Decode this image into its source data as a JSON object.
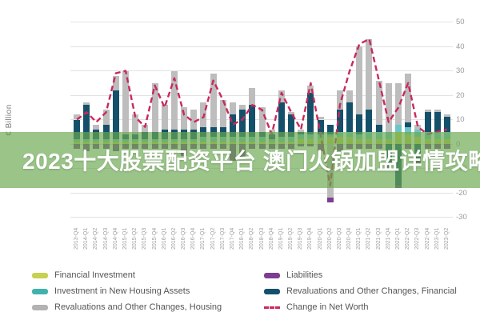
{
  "overlay": {
    "text": "2023十大股票配资平台 澳门火锅加盟详情攻略",
    "background": "#6aa84f",
    "opacity": 0.68,
    "text_color": "#ffffff"
  },
  "chart_data": {
    "type": "bar",
    "stacked": true,
    "title": "",
    "ylabel": "€ Billion",
    "xlabel": "",
    "ylim": [
      -30,
      50
    ],
    "yticks": [
      50,
      40,
      30,
      20,
      10,
      0,
      -10,
      -20,
      -30
    ],
    "grid": true,
    "legend_position": "bottom",
    "categories": [
      "2013-Q4",
      "2014-Q1",
      "2014-Q2",
      "2014-Q3",
      "2014-Q4",
      "2015-Q1",
      "2015-Q2",
      "2015-Q3",
      "2015-Q4",
      "2016-Q1",
      "2016-Q2",
      "2016-Q3",
      "2016-Q4",
      "2017-Q1",
      "2017-Q2",
      "2017-Q3",
      "2017-Q4",
      "2018-Q1",
      "2018-Q2",
      "2018-Q3",
      "2018-Q4",
      "2019-Q1",
      "2019-Q2",
      "2019-Q3",
      "2019-Q4",
      "2020-Q1",
      "2020-Q2",
      "2020-Q3",
      "2020-Q4",
      "2021-Q1",
      "2021-Q2",
      "2021-Q3",
      "2021-Q4",
      "2022-Q1",
      "2022-Q2",
      "2022-Q3",
      "2022-Q4",
      "2023-Q1",
      "2023-Q2"
    ],
    "series": [
      {
        "name": "Financial Investment",
        "color": "#c6d14f",
        "values": [
          1,
          1,
          1,
          1,
          1,
          1,
          1,
          1,
          1,
          1,
          1,
          1,
          1,
          1,
          1,
          1,
          1,
          1,
          1,
          1,
          1,
          1,
          1,
          2,
          2,
          2,
          3,
          3,
          3,
          2,
          2,
          2,
          2,
          5,
          4,
          3,
          2,
          2,
          2
        ]
      },
      {
        "name": "Investment in New Housing Assets",
        "color": "#6cc5c8",
        "values": [
          1,
          1,
          1,
          1,
          1,
          1,
          1,
          1,
          1,
          1,
          1,
          1,
          1,
          2,
          2,
          2,
          2,
          2,
          2,
          2,
          1,
          2,
          2,
          2,
          2,
          2,
          1,
          2,
          2,
          2,
          3,
          3,
          3,
          3,
          3,
          3,
          3,
          3,
          3
        ]
      },
      {
        "name": "Revaluations and Other Changes, Financial",
        "color": "#15506b",
        "values": [
          8,
          14,
          4,
          6,
          20,
          2,
          2,
          3,
          3,
          4,
          4,
          4,
          4,
          4,
          4,
          4,
          9,
          11,
          13,
          2,
          2,
          14,
          9,
          1,
          17,
          6,
          4,
          9,
          12,
          8,
          9,
          3,
          -8,
          -17,
          2,
          -6,
          8,
          8,
          6
        ]
      },
      {
        "name": "Revaluations and Other Changes, Housing",
        "color": "#bdbdbd",
        "values": [
          2,
          1,
          2,
          6,
          6,
          26,
          8,
          3,
          20,
          10,
          24,
          9,
          8,
          10,
          22,
          11,
          5,
          2,
          7,
          10,
          2,
          5,
          1,
          1,
          3,
          1,
          -22,
          8,
          5,
          28,
          29,
          18,
          20,
          17,
          20,
          2,
          1,
          1,
          1
        ]
      },
      {
        "name": "Liabilities",
        "color": "#7d3e91",
        "values": [
          -2,
          -3,
          -2,
          -2,
          -3,
          -2,
          -2,
          -2,
          -2,
          -2,
          -2,
          -5,
          -2,
          -2,
          -2,
          -2,
          -7,
          -6,
          -2,
          -2,
          -2,
          -2,
          -2,
          -1,
          -1,
          -3,
          -2,
          -3,
          -2,
          -2,
          -2,
          -2,
          -2,
          -1,
          -2,
          -2,
          -2,
          -2,
          -2
        ]
      }
    ],
    "line_series": {
      "name": "Change in Net Worth",
      "color": "#c9295a",
      "dashed": true,
      "values": [
        10,
        13,
        9,
        13,
        29,
        30,
        11,
        7,
        24,
        15,
        27,
        12,
        9,
        11,
        26,
        18,
        8,
        10,
        16,
        14,
        4,
        21,
        13,
        6,
        25,
        4,
        -17,
        16,
        30,
        41,
        43,
        26,
        9,
        15,
        25,
        7,
        4,
        5,
        6
      ]
    }
  },
  "legend": {
    "column1": [
      {
        "label": "Financial Investment",
        "color": "#c6d14f",
        "style": "swatch"
      },
      {
        "label": "Investment in New Housing Assets",
        "color": "#3fb3ab",
        "style": "swatch"
      },
      {
        "label": "Revaluations and Other Changes, Housing",
        "color": "#b3b3b3",
        "style": "swatch"
      }
    ],
    "column2": [
      {
        "label": "Liabilities",
        "color": "#7d3e91",
        "style": "swatch"
      },
      {
        "label": "Revaluations and Other Changes, Financial",
        "color": "#14506b",
        "style": "swatch"
      },
      {
        "label": "Change in Net Worth",
        "color": "#c9295a",
        "style": "dash"
      }
    ]
  }
}
